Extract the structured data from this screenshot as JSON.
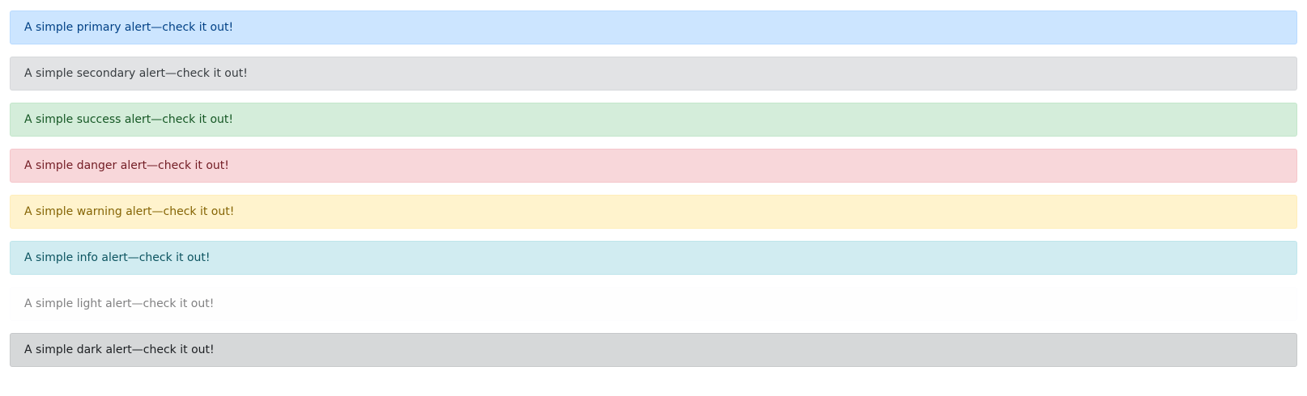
{
  "alerts": [
    {
      "variant": "primary",
      "text": "A simple primary alert—check it out!",
      "bg": "#cce5ff",
      "border": "#b8daff",
      "color": "#004085"
    },
    {
      "variant": "secondary",
      "text": "A simple secondary alert—check it out!",
      "bg": "#e2e3e5",
      "border": "#d6d8db",
      "color": "#383d41"
    },
    {
      "variant": "success",
      "text": "A simple success alert—check it out!",
      "bg": "#d4edda",
      "border": "#c3e6cb",
      "color": "#155724"
    },
    {
      "variant": "danger",
      "text": "A simple danger alert—check it out!",
      "bg": "#f8d7da",
      "border": "#f5c6cb",
      "color": "#721c24"
    },
    {
      "variant": "warning",
      "text": "A simple warning alert—check it out!",
      "bg": "#fff3cd",
      "border": "#ffeeba",
      "color": "#856404"
    },
    {
      "variant": "info",
      "text": "A simple info alert—check it out!",
      "bg": "#d1ecf1",
      "border": "#bee5eb",
      "color": "#0c5460"
    },
    {
      "variant": "light",
      "text": "A simple light alert—check it out!",
      "bg": "#fefefe",
      "border": "#fdfdfe",
      "color": "#818182"
    },
    {
      "variant": "dark",
      "text": "A simple dark alert—check it out!",
      "bg": "#d6d8d9",
      "border": "#c6c8ca",
      "color": "#1b1e21"
    }
  ]
}
